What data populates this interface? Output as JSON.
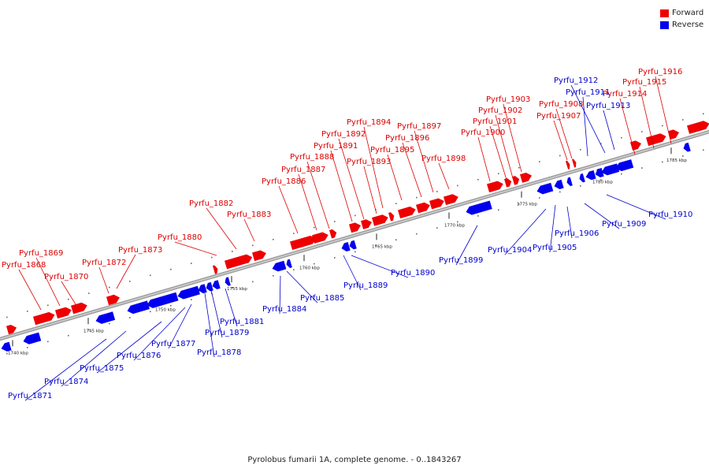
{
  "legend": {
    "forward": {
      "label": "Forward",
      "color": "#ee0000"
    },
    "reverse": {
      "label": "Reverse",
      "color": "#0000ee"
    }
  },
  "caption": "Pyrolobus fumarii 1A, complete genome. - 0..1843267",
  "colors": {
    "backbone": "#8a8a8a",
    "forward_label": "#dd0000",
    "reverse_label": "#0000cc"
  },
  "scale_labels": [
    "1740 kbp",
    "1745 kbp",
    "1750 kbp",
    "1755 kbp",
    "1760 kbp",
    "1765 kbp",
    "1770 kbp",
    "1775 kbp",
    "1780 kbp",
    "1785 kbp"
  ],
  "genes_forward": [
    "Pyrfu_1868",
    "Pyrfu_1869",
    "Pyrfu_1870",
    "Pyrfu_1872",
    "Pyrfu_1873",
    "Pyrfu_1880",
    "Pyrfu_1882",
    "Pyrfu_1883",
    "Pyrfu_1886",
    "Pyrfu_1887",
    "Pyrfu_1888",
    "Pyrfu_1891",
    "Pyrfu_1892",
    "Pyrfu_1893",
    "Pyrfu_1894",
    "Pyrfu_1895",
    "Pyrfu_1896",
    "Pyrfu_1897",
    "Pyrfu_1898",
    "Pyrfu_1900",
    "Pyrfu_1901",
    "Pyrfu_1902",
    "Pyrfu_1903",
    "Pyrfu_1907",
    "Pyrfu_1908",
    "Pyrfu_1914",
    "Pyrfu_1915",
    "Pyrfu_1916"
  ],
  "genes_reverse": [
    "Pyrfu_1871",
    "Pyrfu_1874",
    "Pyrfu_1875",
    "Pyrfu_1876",
    "Pyrfu_1877",
    "Pyrfu_1878",
    "Pyrfu_1879",
    "Pyrfu_1881",
    "Pyrfu_1884",
    "Pyrfu_1885",
    "Pyrfu_1889",
    "Pyrfu_1890",
    "Pyrfu_1899",
    "Pyrfu_1904",
    "Pyrfu_1905",
    "Pyrfu_1906",
    "Pyrfu_1909",
    "Pyrfu_1910",
    "Pyrfu_1911",
    "Pyrfu_1912",
    "Pyrfu_1913"
  ]
}
